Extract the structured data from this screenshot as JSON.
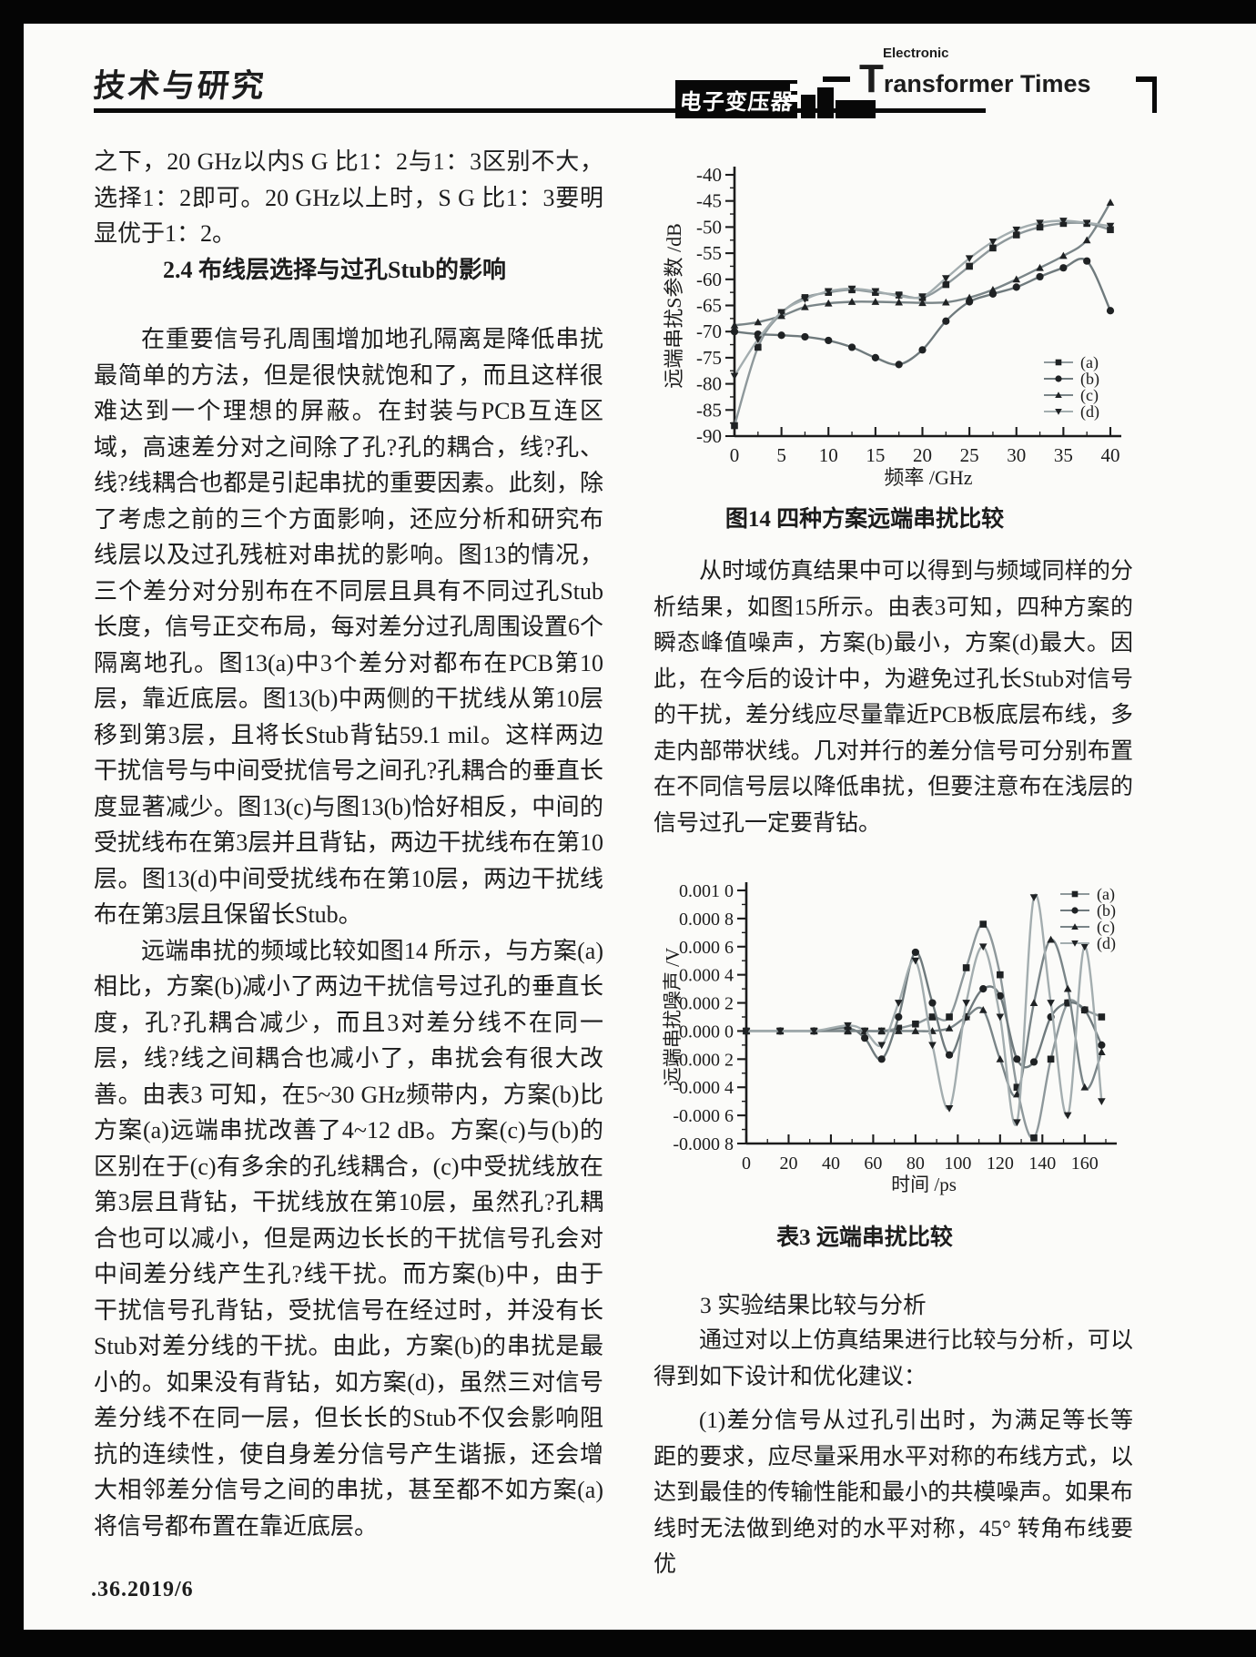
{
  "header": {
    "section_label": "技术与研究",
    "logo": {
      "top_small": "Electronic",
      "top_main": "Transformer Times",
      "cn_box": "电子变压器"
    }
  },
  "footer": {
    "page_number": ".36.2019/6"
  },
  "left_column": {
    "para_continuation": "之下，20 GHz以内S G 比1：2与1：3区别不大，选择1：2即可。20 GHz以上时，S G 比1：3要明显优于1：2。",
    "section_heading": "2.4 布线层选择与过孔Stub的影响",
    "para_layers": "在重要信号孔周围增加地孔隔离是降低串扰最简单的方法，但是很快就饱和了，而且这样很难达到一个理想的屏蔽。在封装与PCB互连区域，高速差分对之间除了孔?孔的耦合，线?孔、线?线耦合也都是引起串扰的重要因素。此刻，除了考虑之前的三个方面影响，还应分析和研究布线层以及过孔残桩对串扰的影响。图13的情况，三个差分对分别布在不同层且具有不同过孔Stub长度，信号正交布局，每对差分过孔周围设置6个隔离地孔。图13(a)中3个差分对都布在PCB第10层，靠近底层。图13(b)中两侧的干扰线从第10层移到第3层，且将长Stub背钻59.1 mil。这样两边干扰信号与中间受扰信号之间孔?孔耦合的垂直长度显著减少。图13(c)与图13(b)恰好相反，中间的受扰线布在第3层并且背钻，两边干扰线布在第10层。图13(d)中间受扰线布在第10层，两边干扰线布在第3层且保留长Stub。",
    "para_farend": "远端串扰的频域比较如图14 所示，与方案(a)相比，方案(b)减小了两边干扰信号过孔的垂直长度，孔?孔耦合减少，而且3对差分线不在同一层，线?线之间耦合也减小了，串扰会有很大改善。由表3 可知，在5~30 GHz频带内，方案(b)比方案(a)远端串扰改善了4~12 dB。方案(c)与(b)的区别在于(c)有多余的孔线耦合，(c)中受扰线放在第3层且背钻，干扰线放在第10层，虽然孔?孔耦合也可以减小，但是两边长长的干扰信号孔会对中间差分线产生孔?线干扰。而方案(b)中，由于干扰信号孔背钻，受扰信号在经过时，并没有长Stub对差分线的干扰。由此，方案(b)的串扰是最小的。如果没有背钻，如方案(d)，虽然三对信号差分线不在同一层，但长长的Stub不仅会影响阻抗的连续性，使自身差分信号产生谐振，还会增大相邻差分信号之间的串扰，甚至都不如方案(a)将信号都布置在靠近底层。"
  },
  "right_column": {
    "fig14_caption": "图14 四种方案远端串扰比较",
    "para_time_domain": "从时域仿真结果中可以得到与频域同样的分析结果，如图15所示。由表3可知，四种方案的瞬态峰值噪声，方案(b)最小，方案(d)最大。因此，在今后的设计中，为避免过孔长Stub对信号的干扰，差分线应尽量靠近PCB板底层布线，多走内部带状线。几对并行的差分信号可分别布置在不同信号层以降低串扰，但要注意布在浅层的信号过孔一定要背钻。",
    "table3_caption": "表3 远端串扰比较",
    "section3_heading": "3 实验结果比较与分析",
    "para_summary": "通过对以上仿真结果进行比较与分析，可以得到如下设计和优化建议：",
    "para_item1": "(1)差分信号从过孔引出时，为满足等长等距的要求，应尽量采用水平对称的布线方式，以达到最佳的传输性能和最小的共模噪声。如果布线时无法做到绝对的水平对称，45° 转角布线要优"
  },
  "chart_data": [
    {
      "type": "line",
      "title": "图14 四种方案远端串扰比较",
      "xlabel": "频率 /GHz",
      "ylabel": "远端串扰S参数 /dB",
      "xlim": [
        0,
        40
      ],
      "ylim": [
        -90,
        -40
      ],
      "x_ticks": [
        0,
        5,
        10,
        15,
        20,
        25,
        30,
        35,
        40
      ],
      "y_ticks": [
        -40,
        -45,
        -50,
        -55,
        -60,
        -65,
        -70,
        -75,
        -80,
        -85,
        -90
      ],
      "grid": false,
      "legend_position": "inside-lower-right",
      "x": [
        0,
        2.5,
        5,
        7.5,
        10,
        12.5,
        15,
        17.5,
        20,
        22.5,
        25,
        27.5,
        30,
        32.5,
        35,
        37.5,
        40
      ],
      "series": [
        {
          "name": "(a)",
          "marker": "square",
          "color": "#8e989b",
          "values": [
            -88,
            -73,
            -66.5,
            -63.5,
            -62.5,
            -62,
            -62.5,
            -63,
            -63.5,
            -61,
            -57.5,
            -54,
            -51.5,
            -50,
            -49.3,
            -49.3,
            -50.5
          ]
        },
        {
          "name": "(b)",
          "marker": "circle",
          "color": "#6f7a7d",
          "values": [
            -70,
            -70.5,
            -70.7,
            -71,
            -71.7,
            -73,
            -75,
            -76.3,
            -73.5,
            -68,
            -64.3,
            -62.8,
            -61.5,
            -59.5,
            -57.8,
            -56.5,
            -66
          ]
        },
        {
          "name": "(c)",
          "marker": "triangle-up",
          "color": "#7a8588",
          "values": [
            -68.8,
            -68.2,
            -67,
            -65.3,
            -64.6,
            -64.3,
            -64.3,
            -64.4,
            -64.5,
            -64.4,
            -63.5,
            -62,
            -60,
            -57.8,
            -55.5,
            -52.5,
            -45.3
          ]
        },
        {
          "name": "(d)",
          "marker": "triangle-down",
          "color": "#a3adaf",
          "values": [
            -78.5,
            -71.5,
            -66.3,
            -63.8,
            -62.3,
            -61.8,
            -62.3,
            -63.2,
            -63.3,
            -59.8,
            -56,
            -52.8,
            -50.5,
            -49.2,
            -48.8,
            -49.2,
            -49.8
          ]
        }
      ]
    },
    {
      "type": "line",
      "title": "表3 远端串扰比较",
      "xlabel": "时间 /ps",
      "ylabel": "远端串扰噪声 /V",
      "xlim": [
        0,
        170
      ],
      "ylim": [
        -0.0008,
        0.001
      ],
      "x_ticks": [
        0,
        20,
        40,
        60,
        80,
        100,
        120,
        140,
        160
      ],
      "y_ticks": [
        0.001,
        0.0008,
        0.0006,
        0.0004,
        0.0002,
        0,
        -0.0002,
        -0.0004,
        -0.0006,
        -0.0008
      ],
      "y_tick_labels": [
        "0.001 0",
        "0.000 8",
        "0.000 6",
        "0.000 4",
        "0.000 2",
        "0.000 0",
        "-0.000 2",
        "-0.000 4",
        "-0.000 6",
        "-0.000 8"
      ],
      "grid": false,
      "legend_position": "inside-upper-right",
      "x": [
        0,
        16,
        32,
        48,
        56,
        64,
        72,
        80,
        88,
        96,
        104,
        112,
        120,
        128,
        136,
        144,
        152,
        160,
        168
      ],
      "series": [
        {
          "name": "(a)",
          "marker": "square",
          "color": "#8e989b",
          "values": [
            0,
            0,
            0,
            0,
            0,
            0,
            2e-05,
            5e-05,
            0.0001,
            0.0001,
            0.00045,
            0.00076,
            0.0004,
            -0.0004,
            -0.00076,
            -0.0002,
            0.0002,
            0.00015,
            0.0001
          ]
        },
        {
          "name": "(b)",
          "marker": "circle",
          "color": "#6f7a7d",
          "values": [
            0,
            0,
            0,
            2e-05,
            -5e-05,
            -0.0002,
            0.0001,
            0.00056,
            0.0002,
            -0.00017,
            0.0001,
            0.0003,
            0.00025,
            -0.0002,
            -0.00022,
            0.0001,
            0.0002,
            0.00015,
            -0.0001
          ]
        },
        {
          "name": "(c)",
          "marker": "triangle-up",
          "color": "#7a8588",
          "values": [
            0,
            0,
            0,
            0,
            0,
            0,
            0,
            0,
            0,
            2e-05,
            0.0001,
            0.00015,
            -0.0002,
            -0.00045,
            0.0002,
            0.00065,
            0.0003,
            -0.0004,
            -0.00015
          ]
        },
        {
          "name": "(d)",
          "marker": "triangle-down",
          "color": "#a3adaf",
          "values": [
            0,
            0,
            0,
            4e-05,
            0,
            -0.0001,
            0.0002,
            0.0005,
            -0.0001,
            -0.00055,
            0.0002,
            0.0006,
            0.0001,
            -0.00065,
            0.00095,
            0.0002,
            -0.0006,
            0.0006,
            -0.0005
          ]
        }
      ]
    }
  ]
}
